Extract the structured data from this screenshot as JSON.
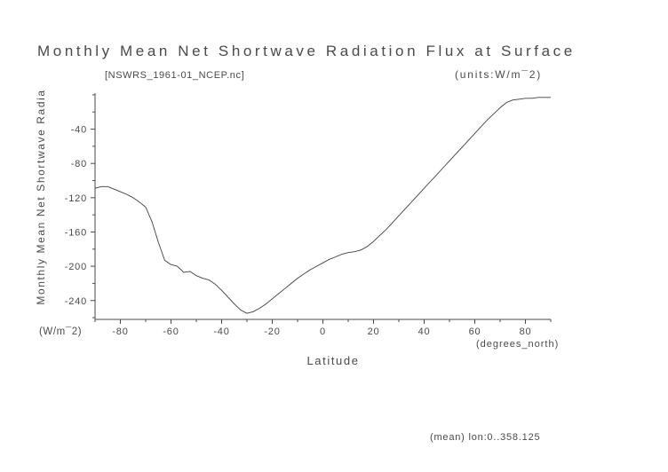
{
  "title": "Monthly Mean Net Shortwave Radiation Flux at Surface",
  "header": {
    "dataset": "[NSWRS_1961-01_NCEP.nc]",
    "units": "(units:W/m¯2)"
  },
  "axes": {
    "y_title": "Monthly Mean Net Shortwave Radia",
    "y_units": "(W/m¯2)",
    "x_label": "Latitude",
    "x_units": "(degrees_north)"
  },
  "footer": {
    "annotation": "(mean) lon:0..358.125"
  },
  "colors": {
    "line": "#3f3f3f",
    "axis": "#4a4a4a",
    "text": "#4a4a4a"
  },
  "chart_data": {
    "type": "line",
    "title": "Monthly Mean Net Shortwave Radiation Flux at Surface",
    "xlabel": "Latitude (degrees_north)",
    "ylabel": "Monthly Mean Net Shortwave Radiation Flux at Surface (W/m¯2)",
    "legend": "none",
    "grid": "off",
    "xlim": [
      -90,
      90
    ],
    "ylim": [
      -262,
      2
    ],
    "x_ticks": [
      -80,
      -60,
      -40,
      -20,
      0,
      20,
      40,
      60,
      80
    ],
    "y_ticks": [
      -240,
      -200,
      -160,
      -120,
      -80,
      -40
    ],
    "x": [
      -90,
      -87.5,
      -85,
      -82.5,
      -80,
      -77.5,
      -75,
      -72.5,
      -70,
      -67.5,
      -65,
      -62.5,
      -60,
      -57.5,
      -55,
      -52.5,
      -50,
      -47.5,
      -45,
      -42.5,
      -40,
      -37.5,
      -35,
      -32.5,
      -30,
      -27.5,
      -25,
      -22.5,
      -20,
      -17.5,
      -15,
      -12.5,
      -10,
      -7.5,
      -5,
      -2.5,
      0,
      2.5,
      5,
      7.5,
      10,
      12.5,
      15,
      17.5,
      20,
      22.5,
      25,
      27.5,
      30,
      32.5,
      35,
      37.5,
      40,
      42.5,
      45,
      47.5,
      50,
      52.5,
      55,
      57.5,
      60,
      62.5,
      65,
      67.5,
      70,
      72.5,
      75,
      77.5,
      80,
      82.5,
      85,
      87.5,
      90
    ],
    "y": [
      -109,
      -107,
      -107,
      -110,
      -113,
      -116,
      -120,
      -125,
      -131,
      -148,
      -172,
      -193,
      -198,
      -200,
      -207,
      -206,
      -211,
      -214,
      -216,
      -221,
      -228,
      -236,
      -244,
      -251,
      -255,
      -253,
      -249,
      -244,
      -238,
      -232,
      -226,
      -220,
      -214,
      -209,
      -204,
      -200,
      -196,
      -192,
      -189,
      -186,
      -184,
      -183,
      -181,
      -177,
      -171,
      -164,
      -157,
      -149,
      -141,
      -133,
      -125,
      -117,
      -109,
      -101,
      -93,
      -85,
      -77,
      -69,
      -61,
      -53,
      -45,
      -37,
      -29,
      -22,
      -15,
      -9,
      -6,
      -5,
      -4,
      -4,
      -3,
      -3,
      -3
    ]
  }
}
